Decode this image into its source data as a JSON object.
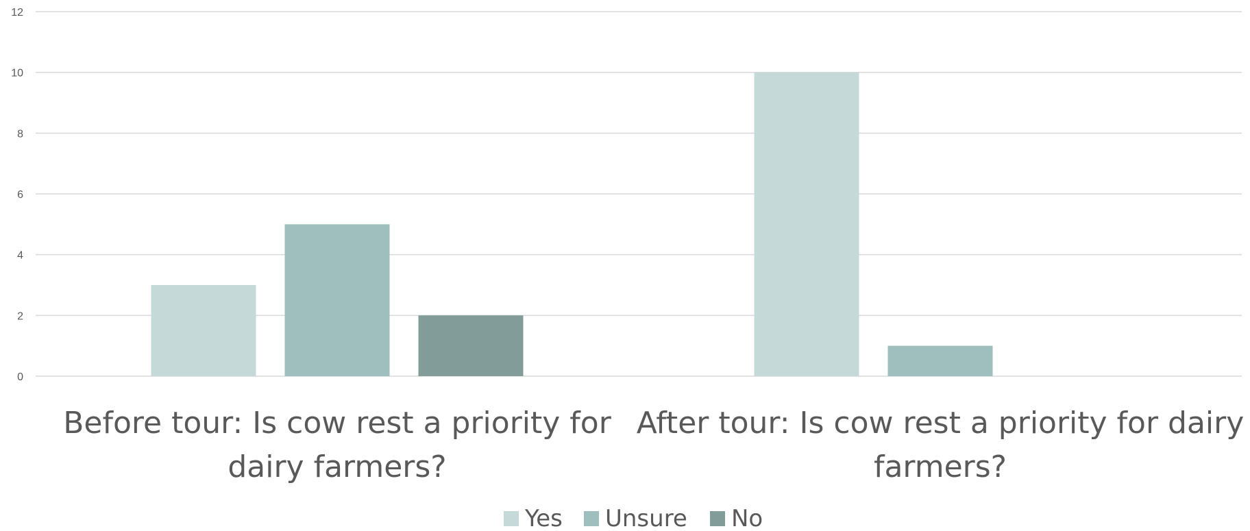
{
  "chart_data": {
    "type": "bar",
    "categories": [
      "Before tour: Is cow rest a priority for dairy farmers?",
      "After tour: Is cow rest a priority for dairy farmers?"
    ],
    "category_lines": [
      [
        "Before tour: Is cow rest a priority for",
        "dairy farmers?"
      ],
      [
        "After tour: Is cow rest a priority for dairy",
        "farmers?"
      ]
    ],
    "series": [
      {
        "name": "Yes",
        "values": [
          3,
          10
        ],
        "color": "#c5d9d8"
      },
      {
        "name": "Unsure",
        "values": [
          5,
          1
        ],
        "color": "#9ebfbd"
      },
      {
        "name": "No",
        "values": [
          2,
          0
        ],
        "color": "#829c9a"
      }
    ],
    "y_ticks": [
      "0",
      "2",
      "4",
      "6",
      "8",
      "10",
      "12"
    ],
    "ylim": [
      0,
      12
    ],
    "grid": true,
    "legend_position": "bottom",
    "title": "",
    "xlabel": "",
    "ylabel": ""
  }
}
